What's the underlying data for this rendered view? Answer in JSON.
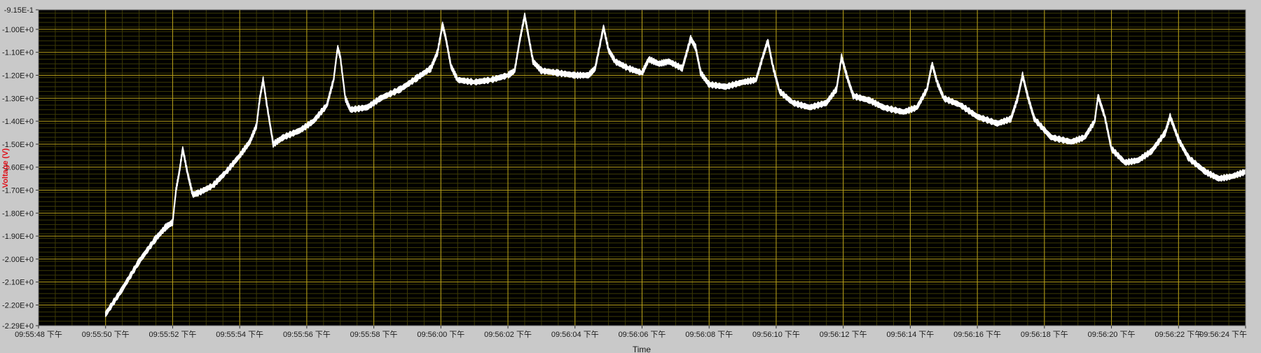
{
  "chart_data": {
    "type": "line",
    "ylabel": "Voltage (V)",
    "xlabel": "Time",
    "grid": true,
    "ylim": [
      -2.29,
      -0.915
    ],
    "xlim": [
      0,
      36
    ],
    "y_ticks": [
      {
        "value": -0.915,
        "label": "-9.15E-1"
      },
      {
        "value": -1.0,
        "label": "-1.00E+0"
      },
      {
        "value": -1.1,
        "label": "-1.10E+0"
      },
      {
        "value": -1.2,
        "label": "-1.20E+0"
      },
      {
        "value": -1.3,
        "label": "-1.30E+0"
      },
      {
        "value": -1.4,
        "label": "-1.40E+0"
      },
      {
        "value": -1.5,
        "label": "-1.50E+0"
      },
      {
        "value": -1.6,
        "label": "-1.60E+0"
      },
      {
        "value": -1.7,
        "label": "-1.70E+0"
      },
      {
        "value": -1.8,
        "label": "-1.80E+0"
      },
      {
        "value": -1.9,
        "label": "-1.90E+0"
      },
      {
        "value": -2.0,
        "label": "-2.00E+0"
      },
      {
        "value": -2.1,
        "label": "-2.10E+0"
      },
      {
        "value": -2.2,
        "label": "-2.20E+0"
      },
      {
        "value": -2.29,
        "label": "-2.29E+0"
      }
    ],
    "x_ticks": [
      {
        "value": 0,
        "label": "09:55:48 下午"
      },
      {
        "value": 2,
        "label": "09:55:50 下午"
      },
      {
        "value": 4,
        "label": "09:55:52 下午"
      },
      {
        "value": 6,
        "label": "09:55:54 下午"
      },
      {
        "value": 8,
        "label": "09:55:56 下午"
      },
      {
        "value": 10,
        "label": "09:55:58 下午"
      },
      {
        "value": 12,
        "label": "09:56:00 下午"
      },
      {
        "value": 14,
        "label": "09:56:02 下午"
      },
      {
        "value": 16,
        "label": "09:56:04 下午"
      },
      {
        "value": 18,
        "label": "09:56:06 下午"
      },
      {
        "value": 20,
        "label": "09:56:08 下午"
      },
      {
        "value": 22,
        "label": "09:56:10 下午"
      },
      {
        "value": 24,
        "label": "09:56:12 下午"
      },
      {
        "value": 26,
        "label": "09:56:14 下午"
      },
      {
        "value": 28,
        "label": "09:56:16 下午"
      },
      {
        "value": 30,
        "label": "09:56:18 下午"
      },
      {
        "value": 32,
        "label": "09:56:20 下午"
      },
      {
        "value": 34,
        "label": "09:56:22 下午"
      },
      {
        "value": 36,
        "label": "09:56:24 下午"
      }
    ],
    "series": [
      {
        "color": "#ffffff",
        "band_width": 0.02,
        "points": [
          [
            2.0,
            -2.24
          ],
          [
            2.5,
            -2.13
          ],
          [
            3.0,
            -2.01
          ],
          [
            3.5,
            -1.91
          ],
          [
            3.8,
            -1.86
          ],
          [
            4.0,
            -1.84
          ],
          [
            4.1,
            -1.7
          ],
          [
            4.2,
            -1.62
          ],
          [
            4.3,
            -1.52
          ],
          [
            4.45,
            -1.63
          ],
          [
            4.6,
            -1.72
          ],
          [
            4.8,
            -1.71
          ],
          [
            5.2,
            -1.68
          ],
          [
            5.6,
            -1.62
          ],
          [
            6.0,
            -1.55
          ],
          [
            6.3,
            -1.49
          ],
          [
            6.5,
            -1.42
          ],
          [
            6.6,
            -1.3
          ],
          [
            6.7,
            -1.22
          ],
          [
            6.8,
            -1.32
          ],
          [
            7.0,
            -1.5
          ],
          [
            7.3,
            -1.47
          ],
          [
            7.8,
            -1.44
          ],
          [
            8.2,
            -1.4
          ],
          [
            8.6,
            -1.33
          ],
          [
            8.8,
            -1.22
          ],
          [
            8.92,
            -1.08
          ],
          [
            9.0,
            -1.12
          ],
          [
            9.15,
            -1.3
          ],
          [
            9.3,
            -1.35
          ],
          [
            9.8,
            -1.34
          ],
          [
            10.2,
            -1.3
          ],
          [
            10.8,
            -1.26
          ],
          [
            11.3,
            -1.21
          ],
          [
            11.7,
            -1.17
          ],
          [
            11.9,
            -1.1
          ],
          [
            12.05,
            -0.98
          ],
          [
            12.15,
            -1.04
          ],
          [
            12.3,
            -1.16
          ],
          [
            12.5,
            -1.22
          ],
          [
            13.0,
            -1.23
          ],
          [
            13.5,
            -1.22
          ],
          [
            14.0,
            -1.2
          ],
          [
            14.2,
            -1.18
          ],
          [
            14.35,
            -1.05
          ],
          [
            14.5,
            -0.94
          ],
          [
            14.6,
            -1.02
          ],
          [
            14.75,
            -1.14
          ],
          [
            15.0,
            -1.18
          ],
          [
            15.5,
            -1.19
          ],
          [
            16.0,
            -1.2
          ],
          [
            16.4,
            -1.2
          ],
          [
            16.6,
            -1.17
          ],
          [
            16.85,
            -0.99
          ],
          [
            17.0,
            -1.09
          ],
          [
            17.2,
            -1.14
          ],
          [
            17.6,
            -1.17
          ],
          [
            18.0,
            -1.19
          ],
          [
            18.2,
            -1.13
          ],
          [
            18.5,
            -1.15
          ],
          [
            18.8,
            -1.14
          ],
          [
            19.2,
            -1.17
          ],
          [
            19.45,
            -1.04
          ],
          [
            19.6,
            -1.08
          ],
          [
            19.75,
            -1.19
          ],
          [
            20.0,
            -1.24
          ],
          [
            20.5,
            -1.25
          ],
          [
            21.0,
            -1.23
          ],
          [
            21.4,
            -1.22
          ],
          [
            21.6,
            -1.12
          ],
          [
            21.75,
            -1.05
          ],
          [
            21.9,
            -1.16
          ],
          [
            22.1,
            -1.27
          ],
          [
            22.5,
            -1.32
          ],
          [
            23.0,
            -1.34
          ],
          [
            23.5,
            -1.32
          ],
          [
            23.8,
            -1.26
          ],
          [
            23.95,
            -1.12
          ],
          [
            24.1,
            -1.2
          ],
          [
            24.3,
            -1.29
          ],
          [
            24.8,
            -1.31
          ],
          [
            25.2,
            -1.34
          ],
          [
            25.8,
            -1.36
          ],
          [
            26.2,
            -1.34
          ],
          [
            26.5,
            -1.26
          ],
          [
            26.65,
            -1.15
          ],
          [
            26.8,
            -1.23
          ],
          [
            27.0,
            -1.3
          ],
          [
            27.5,
            -1.33
          ],
          [
            28.0,
            -1.38
          ],
          [
            28.6,
            -1.41
          ],
          [
            29.0,
            -1.39
          ],
          [
            29.2,
            -1.3
          ],
          [
            29.35,
            -1.2
          ],
          [
            29.5,
            -1.29
          ],
          [
            29.7,
            -1.39
          ],
          [
            30.2,
            -1.47
          ],
          [
            30.8,
            -1.49
          ],
          [
            31.2,
            -1.47
          ],
          [
            31.5,
            -1.4
          ],
          [
            31.6,
            -1.29
          ],
          [
            31.8,
            -1.38
          ],
          [
            32.0,
            -1.52
          ],
          [
            32.4,
            -1.58
          ],
          [
            32.8,
            -1.57
          ],
          [
            33.2,
            -1.53
          ],
          [
            33.6,
            -1.45
          ],
          [
            33.75,
            -1.38
          ],
          [
            34.0,
            -1.48
          ],
          [
            34.3,
            -1.56
          ],
          [
            34.8,
            -1.62
          ],
          [
            35.2,
            -1.65
          ],
          [
            35.6,
            -1.64
          ],
          [
            36.0,
            -1.62
          ]
        ]
      }
    ]
  },
  "colors": {
    "background": "#c9c9c9",
    "plot_area": "#000000",
    "grid_major": "#b8a01a",
    "grid_minor": "#3c3a06",
    "trace": "#ffffff",
    "ylabel": "#e0101a"
  }
}
